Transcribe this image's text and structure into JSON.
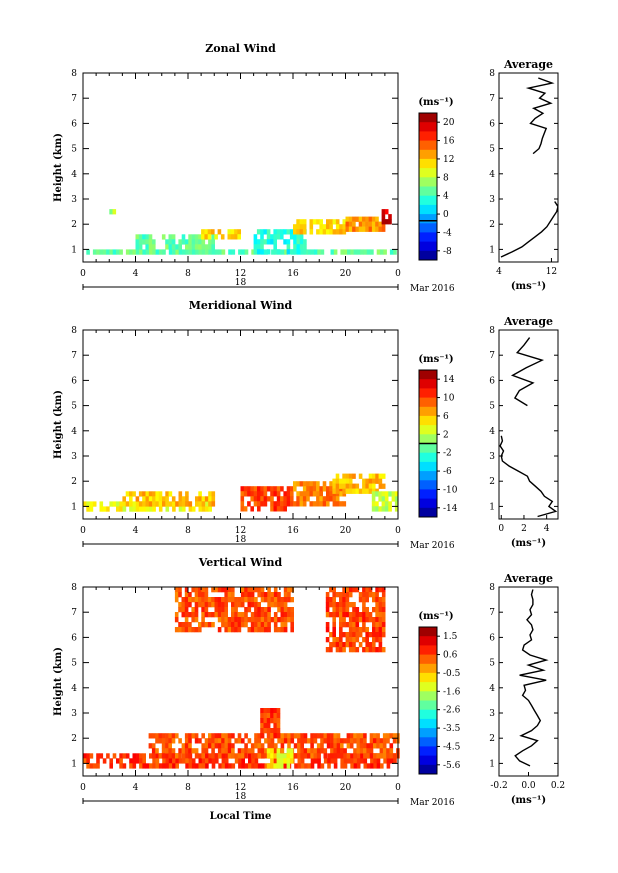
{
  "chart_data": [
    {
      "type": "heatmap",
      "title": "Zonal Wind",
      "ylabel": "Height (km)",
      "xlim": [
        0,
        24
      ],
      "ylim": [
        0.5,
        8
      ],
      "xticks": [
        "0",
        "4",
        "8",
        "12",
        "16",
        "20",
        "0"
      ],
      "yticks": [
        "1",
        "2",
        "3",
        "4",
        "5",
        "6",
        "7",
        "8"
      ],
      "date_label": "18",
      "month_label": "Mar 2016",
      "colorbar": {
        "unit": "(ms⁻¹)",
        "range": [
          -8,
          22
        ],
        "labels": [
          "20",
          "16",
          "12",
          "8",
          "4",
          "0",
          "-4",
          "-8"
        ],
        "zero_line": 0
      },
      "data_regions": [
        {
          "t0": 0,
          "t1": 24,
          "h0": 0.8,
          "h1": 1.0,
          "value": 6
        },
        {
          "t0": 4,
          "t1": 10,
          "h0": 1.0,
          "h1": 1.6,
          "value": 6
        },
        {
          "t0": 9,
          "t1": 12,
          "h0": 1.4,
          "h1": 1.8,
          "value": 12
        },
        {
          "t0": 13,
          "t1": 17,
          "h0": 0.9,
          "h1": 1.8,
          "value": 4
        },
        {
          "t0": 16,
          "t1": 20,
          "h0": 1.6,
          "h1": 2.2,
          "value": 12
        },
        {
          "t0": 20,
          "t1": 23,
          "h0": 1.8,
          "h1": 2.3,
          "value": 14
        },
        {
          "t0": 22.5,
          "t1": 23.5,
          "h0": 2.0,
          "h1": 2.6,
          "value": 20
        },
        {
          "t0": 2,
          "t1": 2.5,
          "h0": 2.4,
          "h1": 2.6,
          "value": 8
        }
      ],
      "average_profile": {
        "title": "Average",
        "xlabel": "(ms⁻¹)",
        "xticks": [
          "4",
          "12"
        ],
        "xlim": [
          4,
          13
        ],
        "height": [
          0.7,
          0.9,
          1.1,
          1.3,
          1.5,
          1.7,
          1.9,
          2.1,
          2.3,
          2.5,
          2.7,
          2.9,
          4.8,
          5.0,
          5.2,
          5.4,
          5.6,
          5.8,
          6.0,
          6.2,
          6.4,
          6.6,
          6.8,
          7.0,
          7.2,
          7.4,
          7.6,
          7.8
        ],
        "value": [
          4.3,
          6.0,
          7.5,
          8.5,
          9.5,
          10.5,
          11.3,
          11.8,
          12.3,
          12.8,
          13.0,
          12.5,
          9.2,
          10.1,
          10.4,
          10.6,
          10.9,
          11.2,
          8.8,
          9.5,
          10.7,
          9.3,
          11.9,
          10.2,
          11.0,
          8.5,
          12.1,
          10.0
        ]
      }
    },
    {
      "type": "heatmap",
      "title": "Meridional Wind",
      "ylabel": "Height (km)",
      "xlim": [
        0,
        24
      ],
      "ylim": [
        0.5,
        8
      ],
      "xticks": [
        "0",
        "4",
        "8",
        "12",
        "16",
        "20",
        "0"
      ],
      "yticks": [
        "1",
        "2",
        "3",
        "4",
        "5",
        "6",
        "7",
        "8"
      ],
      "date_label": "18",
      "month_label": "Mar 2016",
      "colorbar": {
        "unit": "(ms⁻¹)",
        "range": [
          -16,
          16
        ],
        "labels": [
          "14",
          "10",
          "6",
          "2",
          "-2",
          "-6",
          "-10",
          "-14"
        ],
        "zero_line": 0
      },
      "data_regions": [
        {
          "t0": 0,
          "t1": 10,
          "h0": 0.8,
          "h1": 1.2,
          "value": 4
        },
        {
          "t0": 3,
          "t1": 10,
          "h0": 1.0,
          "h1": 1.6,
          "value": 6
        },
        {
          "t0": 12,
          "t1": 16,
          "h0": 0.9,
          "h1": 1.8,
          "value": 10
        },
        {
          "t0": 16,
          "t1": 20,
          "h0": 1.0,
          "h1": 2.0,
          "value": 8
        },
        {
          "t0": 19,
          "t1": 23,
          "h0": 1.5,
          "h1": 2.3,
          "value": 6
        },
        {
          "t0": 22,
          "t1": 24,
          "h0": 0.9,
          "h1": 1.6,
          "value": 2
        }
      ],
      "average_profile": {
        "title": "Average",
        "xlabel": "(ms⁻¹)",
        "xticks": [
          "0",
          "2",
          "4"
        ],
        "xlim": [
          -0.2,
          5
        ],
        "height": [
          0.6,
          0.8,
          1.0,
          1.2,
          1.4,
          1.6,
          1.8,
          2.0,
          2.2,
          2.4,
          2.6,
          2.8,
          3.0,
          3.2,
          3.4,
          3.6,
          3.8,
          5.0,
          5.3,
          5.6,
          5.9,
          6.2,
          6.5,
          6.8,
          7.1,
          7.4,
          7.7
        ],
        "value": [
          3.2,
          4.8,
          4.2,
          4.5,
          3.8,
          3.5,
          3.0,
          2.5,
          2.3,
          1.5,
          0.7,
          0.1,
          0.0,
          0.2,
          -0.1,
          0.1,
          0.0,
          2.3,
          1.2,
          1.6,
          2.8,
          1.0,
          2.2,
          3.6,
          1.4,
          2.0,
          2.5
        ]
      }
    },
    {
      "type": "heatmap",
      "title": "Vertical Wind",
      "ylabel": "Height (km)",
      "xlabel": "Local Time",
      "xlim": [
        0,
        24
      ],
      "ylim": [
        0.5,
        8
      ],
      "xticks": [
        "0",
        "4",
        "8",
        "12",
        "16",
        "20",
        "0"
      ],
      "yticks": [
        "1",
        "2",
        "3",
        "4",
        "5",
        "6",
        "7",
        "8"
      ],
      "date_label": "18",
      "month_label": "Mar 2016",
      "colorbar": {
        "unit": "(ms⁻¹)",
        "range": [
          -6.0,
          2.0
        ],
        "labels": [
          "1.5",
          "0.6",
          "-0.5",
          "-1.6",
          "-2.6",
          "-3.5",
          "-4.5",
          "-5.6"
        ],
        "zero_line": null
      },
      "data_regions": [
        {
          "t0": 0,
          "t1": 24,
          "h0": 0.8,
          "h1": 1.4,
          "value": 0.6
        },
        {
          "t0": 5,
          "t1": 24,
          "h0": 1.2,
          "h1": 2.2,
          "value": 0.4
        },
        {
          "t0": 13.5,
          "t1": 15,
          "h0": 2.0,
          "h1": 3.2,
          "value": 0.6
        },
        {
          "t0": 18.5,
          "t1": 23,
          "h0": 5.5,
          "h1": 8.0,
          "value": 0.5
        },
        {
          "t0": 7,
          "t1": 16,
          "h0": 6.2,
          "h1": 8.0,
          "value": 0.4
        },
        {
          "t0": 14,
          "t1": 16,
          "h0": 0.8,
          "h1": 1.6,
          "value": -1.0
        }
      ],
      "average_profile": {
        "title": "Average",
        "xlabel": "(ms⁻¹)",
        "xticks": [
          "-0.2",
          "0.0",
          "0.2"
        ],
        "xlim": [
          -0.2,
          0.2
        ],
        "height": [
          0.9,
          1.1,
          1.3,
          1.5,
          1.7,
          1.9,
          2.1,
          2.3,
          2.5,
          2.7,
          2.9,
          3.1,
          3.3,
          3.5,
          3.7,
          3.9,
          4.1,
          4.3,
          4.5,
          4.7,
          4.9,
          5.1,
          5.3,
          5.5,
          5.7,
          5.9,
          6.1,
          6.3,
          6.5,
          6.7,
          6.9,
          7.1,
          7.3,
          7.5,
          7.7,
          7.9
        ],
        "value": [
          0.01,
          -0.06,
          -0.09,
          -0.04,
          0.02,
          0.06,
          -0.05,
          0.02,
          0.06,
          0.08,
          0.06,
          0.04,
          0.02,
          0.0,
          -0.04,
          -0.02,
          -0.03,
          0.12,
          -0.06,
          0.1,
          0.0,
          0.12,
          0.01,
          -0.04,
          -0.03,
          0.02,
          0.01,
          0.03,
          0.02,
          -0.01,
          0.02,
          0.01,
          0.03,
          0.03,
          0.02,
          0.03
        ]
      }
    }
  ]
}
